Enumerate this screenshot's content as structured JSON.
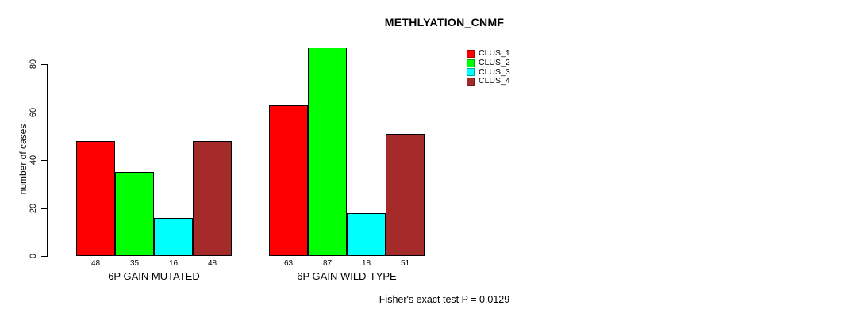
{
  "title": "METHLYATION_CNMF",
  "y_axis": {
    "label": "number of cases",
    "ticks": [
      "0",
      "20",
      "40",
      "60",
      "80"
    ]
  },
  "footer": "Fisher's exact test P = 0.0129",
  "colors": {
    "clus_1": "#ff0000",
    "clus_2": "#00ff00",
    "clus_3": "#00ffff",
    "clus_4": "#a52a2a",
    "bar_border": "#000000",
    "axis": "#000000",
    "text": "#000000",
    "background": "#ffffff"
  },
  "chart_data": {
    "type": "bar",
    "title": "METHLYATION_CNMF",
    "xlabel": "",
    "ylabel": "number of cases",
    "ylim": [
      0,
      80
    ],
    "yticks": [
      0,
      20,
      40,
      60,
      80
    ],
    "grid": false,
    "legend_position": "top-right",
    "bar_value_labels_shown": true,
    "categories": [
      "6P GAIN MUTATED",
      "6P GAIN WILD-TYPE"
    ],
    "series": [
      {
        "name": "CLUS_1",
        "color": "#ff0000",
        "values": [
          48,
          63
        ]
      },
      {
        "name": "CLUS_2",
        "color": "#00ff00",
        "values": [
          35,
          87
        ]
      },
      {
        "name": "CLUS_3",
        "color": "#00ffff",
        "values": [
          16,
          18
        ]
      },
      {
        "name": "CLUS_4",
        "color": "#a52a2a",
        "values": [
          48,
          51
        ]
      }
    ],
    "annotation": "Fisher's exact test P = 0.0129"
  }
}
